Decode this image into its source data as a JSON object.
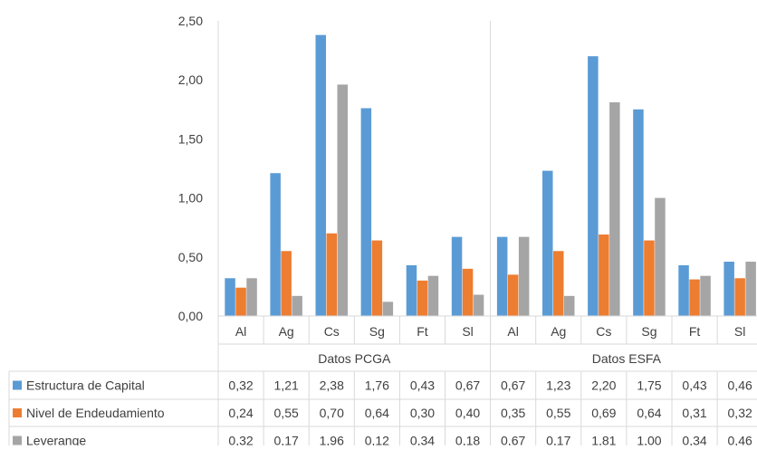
{
  "chart_data": {
    "type": "bar",
    "title": "",
    "xlabel": "",
    "ylabel": "",
    "ylim": [
      0,
      2.5
    ],
    "yticks": [
      "0,00",
      "0,50",
      "1,00",
      "1,50",
      "2,00",
      "2,50"
    ],
    "grid": false,
    "legend_placement": "data table (bottom-left)",
    "groups": [
      {
        "label": "Datos PCGA",
        "categories": [
          "Al",
          "Ag",
          "Cs",
          "Sg",
          "Ft",
          "Sl"
        ]
      },
      {
        "label": "Datos ESFA",
        "categories": [
          "Al",
          "Ag",
          "Cs",
          "Sg",
          "Ft",
          "Sl"
        ]
      }
    ],
    "series": [
      {
        "name": "Estructura de Capital",
        "color": "#5b9bd5",
        "values": [
          0.32,
          1.21,
          2.38,
          1.76,
          0.43,
          0.67,
          0.67,
          1.23,
          2.2,
          1.75,
          0.43,
          0.46
        ],
        "labels": [
          "0,32",
          "1,21",
          "2,38",
          "1,76",
          "0,43",
          "0,67",
          "0,67",
          "1,23",
          "2,20",
          "1,75",
          "0,43",
          "0,46"
        ]
      },
      {
        "name": "Nivel de Endeudamiento",
        "color": "#ed7d31",
        "values": [
          0.24,
          0.55,
          0.7,
          0.64,
          0.3,
          0.4,
          0.35,
          0.55,
          0.69,
          0.64,
          0.31,
          0.32
        ],
        "labels": [
          "0,24",
          "0,55",
          "0,70",
          "0,64",
          "0,30",
          "0,40",
          "0,35",
          "0,55",
          "0,69",
          "0,64",
          "0,31",
          "0,32"
        ]
      },
      {
        "name": "Leverange",
        "color": "#a5a5a5",
        "values": [
          0.32,
          0.17,
          1.96,
          0.12,
          0.34,
          0.18,
          0.67,
          0.17,
          1.81,
          1.0,
          0.34,
          0.46
        ],
        "labels": [
          "0,32",
          "0,17",
          "1,96",
          "0,12",
          "0,34",
          "0,18",
          "0,67",
          "0,17",
          "1,81",
          "1,00",
          "0,34",
          "0,46"
        ]
      }
    ]
  }
}
